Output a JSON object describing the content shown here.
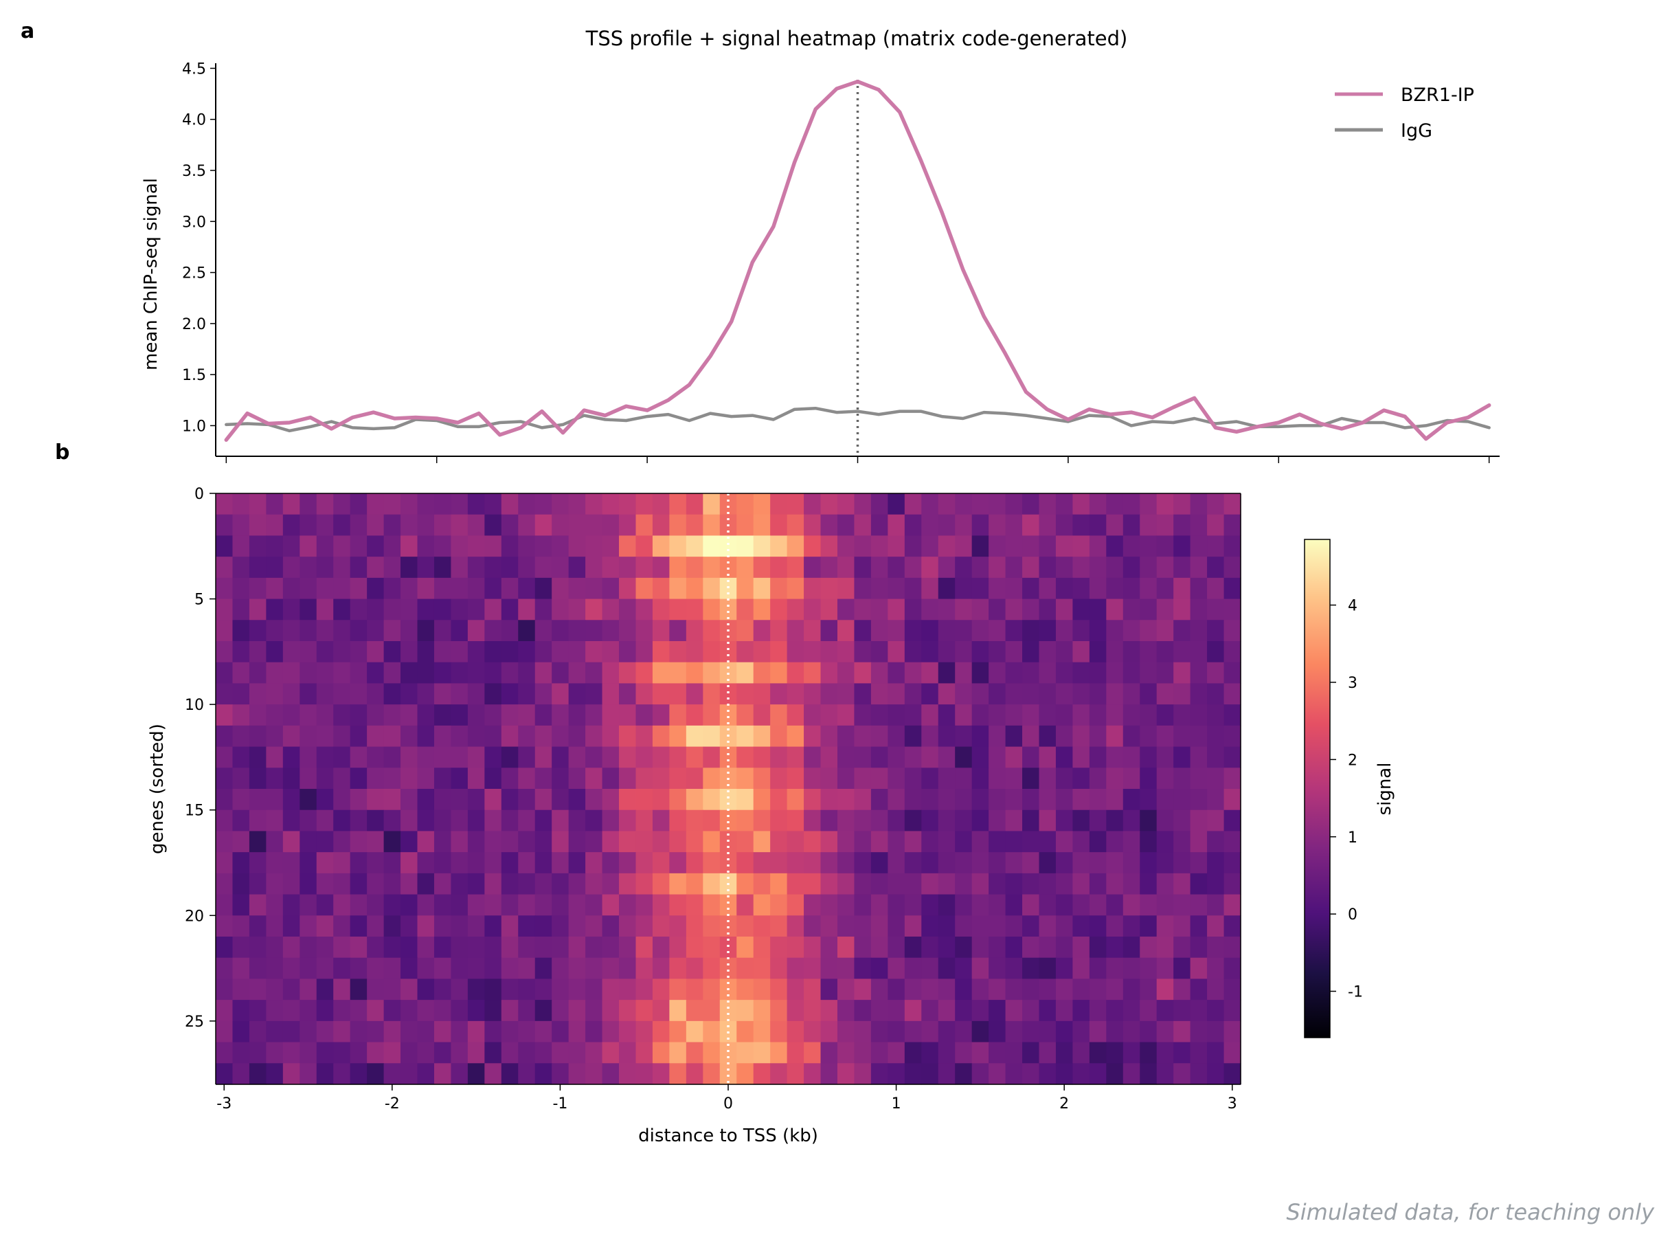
{
  "panels": {
    "a": "a",
    "b": "b"
  },
  "footnote": "Simulated data, for teaching only",
  "colors": {
    "bzr1": "#cc79a7",
    "igg": "#8c8c8c",
    "axis": "#000000",
    "marker": "#666666",
    "heat_marker": "#ffffff"
  },
  "colormap": "magma",
  "chart_data": [
    {
      "type": "line",
      "title": "TSS profile + signal heatmap (matrix code-generated)",
      "xlabel": "",
      "ylabel": "mean ChIP-seq signal",
      "xlim": [
        -3.05,
        3.05
      ],
      "ylim": [
        0.7,
        4.55
      ],
      "yticks": [
        1.0,
        1.5,
        2.0,
        2.5,
        3.0,
        3.5,
        4.0,
        4.5
      ],
      "ytick_labels": [
        "1.0",
        "1.5",
        "2.0",
        "2.5",
        "3.0",
        "3.5",
        "4.0",
        "4.5"
      ],
      "tss_marker_x": 0,
      "legend_position": "top-right",
      "x": [
        -3.0,
        -2.9,
        -2.8,
        -2.7,
        -2.6,
        -2.5,
        -2.4,
        -2.3,
        -2.2,
        -2.1,
        -2.0,
        -1.9,
        -1.8,
        -1.7,
        -1.6,
        -1.5,
        -1.4,
        -1.3,
        -1.2,
        -1.1,
        -1.0,
        -0.9,
        -0.8,
        -0.7,
        -0.6,
        -0.5,
        -0.4,
        -0.3,
        -0.2,
        -0.1,
        0.0,
        0.1,
        0.2,
        0.3,
        0.4,
        0.5,
        0.6,
        0.7,
        0.8,
        0.9,
        1.0,
        1.1,
        1.2,
        1.3,
        1.4,
        1.5,
        1.6,
        1.7,
        1.8,
        1.9,
        2.0,
        2.1,
        2.2,
        2.3,
        2.4,
        2.5,
        2.6,
        2.7,
        2.8,
        2.9,
        3.0
      ],
      "series": [
        {
          "name": "BZR1-IP",
          "values": [
            0.86,
            1.12,
            1.02,
            1.03,
            1.08,
            0.97,
            1.08,
            1.13,
            1.07,
            1.08,
            1.07,
            1.03,
            1.12,
            0.91,
            0.98,
            1.14,
            0.93,
            1.15,
            1.1,
            1.19,
            1.15,
            1.25,
            1.4,
            1.68,
            2.02,
            2.6,
            2.95,
            3.58,
            4.1,
            4.3,
            4.37,
            4.29,
            4.07,
            3.6,
            3.09,
            2.53,
            2.07,
            1.71,
            1.33,
            1.16,
            1.06,
            1.16,
            1.11,
            1.13,
            1.08,
            1.18,
            1.27,
            0.98,
            0.94,
            0.99,
            1.03,
            1.11,
            1.02,
            0.97,
            1.03,
            1.15,
            1.09,
            0.87,
            1.03,
            1.08,
            1.2
          ]
        },
        {
          "name": "IgG",
          "values": [
            1.01,
            1.02,
            1.01,
            0.95,
            0.99,
            1.04,
            0.98,
            0.97,
            0.98,
            1.06,
            1.05,
            0.99,
            0.99,
            1.03,
            1.04,
            0.98,
            1.01,
            1.1,
            1.06,
            1.05,
            1.09,
            1.11,
            1.05,
            1.12,
            1.09,
            1.1,
            1.06,
            1.16,
            1.17,
            1.13,
            1.14,
            1.11,
            1.14,
            1.14,
            1.09,
            1.07,
            1.13,
            1.12,
            1.1,
            1.07,
            1.04,
            1.1,
            1.09,
            1.0,
            1.04,
            1.03,
            1.07,
            1.02,
            1.04,
            0.99,
            0.99,
            1.0,
            1.0,
            1.07,
            1.03,
            1.03,
            0.98,
            1.0,
            1.05,
            1.04,
            0.98
          ]
        }
      ]
    },
    {
      "type": "heatmap",
      "xlabel": "distance to TSS (kb)",
      "ylabel": "genes (sorted)",
      "xlim": [
        -3.05,
        3.05
      ],
      "ylim": [
        28,
        0
      ],
      "xticks": [
        -3,
        -2,
        -1,
        0,
        1,
        2,
        3
      ],
      "xtick_labels": [
        "-3",
        "-2",
        "-1",
        "0",
        "1",
        "2",
        "3"
      ],
      "yticks": [
        0,
        5,
        10,
        15,
        20,
        25
      ],
      "ytick_labels": [
        "0",
        "5",
        "10",
        "15",
        "20",
        "25"
      ],
      "n_genes": 28,
      "n_bins": 61,
      "tss_marker_x": 0,
      "colorbar": {
        "label": "signal",
        "vmin": -1.6,
        "vmax": 4.85,
        "ticks": [
          -1,
          0,
          1,
          2,
          3,
          4
        ],
        "tick_labels": [
          "-1",
          "0",
          "1",
          "2",
          "3",
          "4"
        ]
      },
      "row_peak": [
        2.3,
        2.9,
        4.0,
        2.6,
        3.4,
        2.7,
        1.8,
        1.9,
        3.6,
        1.9,
        2.2,
        3.7,
        2.4,
        2.6,
        3.5,
        2.5,
        2.8,
        2.2,
        3.2,
        2.5,
        2.2,
        2.1,
        2.3,
        2.4,
        3.4,
        3.2,
        3.4,
        2.5
      ],
      "row_background": [
        0.8,
        0.7,
        0.7,
        0.6,
        0.6,
        0.6,
        0.5,
        0.5,
        0.5,
        0.5,
        0.5,
        0.5,
        0.5,
        0.5,
        0.5,
        0.5,
        0.5,
        0.5,
        0.5,
        0.5,
        0.5,
        0.5,
        0.5,
        0.5,
        0.5,
        0.5,
        0.5,
        0.4
      ],
      "peak_width_kb": 0.4
    }
  ]
}
